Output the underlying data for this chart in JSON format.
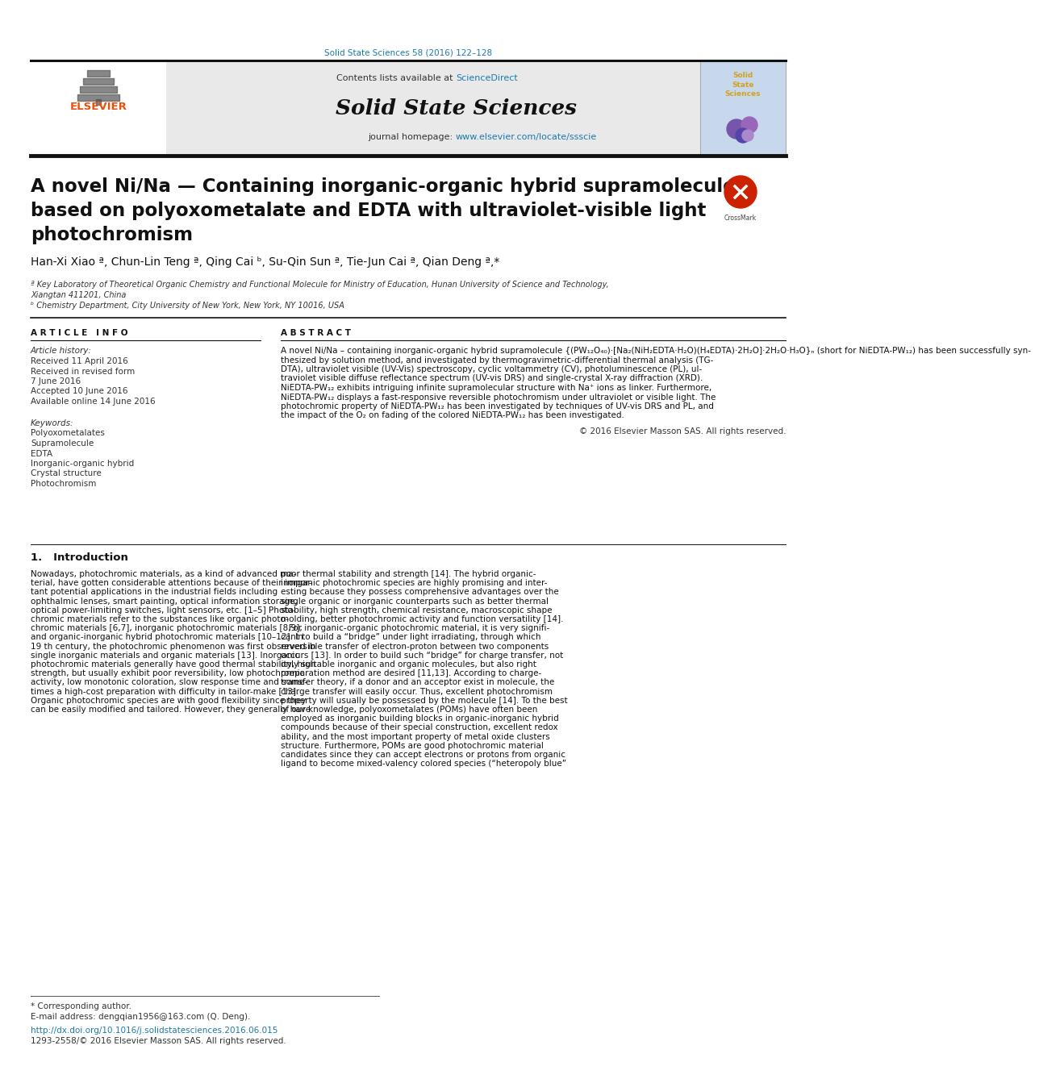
{
  "page_bg": "#ffffff",
  "journal_ref_color": "#1a7aad",
  "journal_ref": "Solid State Sciences 58 (2016) 122–128",
  "header_bg": "#e8e8e8",
  "elsevier_color": "#e8520a",
  "journal_name": "Solid State Sciences",
  "contents_text": "Contents lists available at ",
  "sciencedirect_text": "ScienceDirect",
  "sciencedirect_color": "#1a7aad",
  "homepage_text": "journal homepage: ",
  "homepage_url": "www.elsevier.com/locate/ssscie",
  "homepage_url_color": "#1a7aad",
  "title_line1": "A novel Ni/Na — Containing inorganic-organic hybrid supramolecule",
  "title_line2": "based on polyoxometalate and EDTA with ultraviolet-visible light",
  "title_line3": "photochromism",
  "authors": "Han-Xi Xiao ª, Chun-Lin Teng ª, Qing Cai ᵇ, Su-Qin Sun ª, Tie-Jun Cai ª, Qian Deng ª,*",
  "affil_a": "ª Key Laboratory of Theoretical Organic Chemistry and Functional Molecule for Ministry of Education, Hunan University of Science and Technology,",
  "affil_a2": "Xiangtan 411201, China",
  "affil_b": "ᵇ Chemistry Department, City University of New York, New York, NY 10016, USA",
  "article_info_title": "A R T I C L E   I N F O",
  "article_history_label": "Article history:",
  "received": "Received 11 April 2016",
  "revised": "Received in revised form",
  "revised2": "7 June 2016",
  "accepted": "Accepted 10 June 2016",
  "available": "Available online 14 June 2016",
  "keywords_label": "Keywords:",
  "keywords": [
    "Polyoxometalates",
    "Supramolecule",
    "EDTA",
    "Inorganic-organic hybrid",
    "Crystal structure",
    "Photochromism"
  ],
  "abstract_title": "A B S T R A C T",
  "abstract_lines": [
    "A novel Ni/Na – containing inorganic-organic hybrid supramolecule {(PW₁₂O₄₀)·[Na₂(NiH₂EDTA·H₂O)(H₄EDTA)·2H₂O]·2H₂O·H₃O}ₙ (short for NiEDTA-PW₁₂) has been successfully syn-",
    "thesized by solution method, and investigated by thermogravimetric-differential thermal analysis (TG-",
    "DTA), ultraviolet visible (UV-Vis) spectroscopy, cyclic voltammetry (CV), photoluminescence (PL), ul-",
    "traviolet visible diffuse reflectance spectrum (UV-vis DRS) and single-crystal X-ray diffraction (XRD).",
    "NiEDTA-PW₁₂ exhibits intriguing infinite supramolecular structure with Na⁺ ions as linker. Furthermore,",
    "NiEDTA-PW₁₂ displays a fast-responsive reversible photochromism under ultraviolet or visible light. The",
    "photochromic property of NiEDTA-PW₁₂ has been investigated by techniques of UV-vis DRS and PL, and",
    "the impact of the O₂ on fading of the colored NiEDTA-PW₁₂ has been investigated."
  ],
  "copyright": "© 2016 Elsevier Masson SAS. All rights reserved.",
  "intro_title": "1.   Introduction",
  "intro_col1_lines": [
    "Nowadays, photochromic materials, as a kind of advanced ma-",
    "terial, have gotten considerable attentions because of their impor-",
    "tant potential applications in the industrial fields including",
    "ophthalmic lenses, smart painting, optical information storage,",
    "optical power-limiting switches, light sensors, etc. [1–5] Photo-",
    "chromic materials refer to the substances like organic photo-",
    "chromic materials [6,7], inorganic photochromic materials [8,9],",
    "and organic-inorganic hybrid photochromic materials [10–12]. In",
    "19 th century, the photochromic phenomenon was first observed in",
    "single inorganic materials and organic materials [13]. Inorganic",
    "photochromic materials generally have good thermal stability, high",
    "strength, but usually exhibit poor reversibility, low photochromic",
    "activity, low monotonic coloration, slow response time and some-",
    "times a high-cost preparation with difficulty in tailor-make [13].",
    "Organic photochromic species are with good flexibility since they",
    "can be easily modified and tailored. However, they generally have"
  ],
  "intro_col2_lines": [
    "poor thermal stability and strength [14]. The hybrid organic-",
    "inorganic photochromic species are highly promising and inter-",
    "esting because they possess comprehensive advantages over the",
    "single organic or inorganic counterparts such as better thermal",
    "stability, high strength, chemical resistance, macroscopic shape",
    "molding, better photochromic activity and function versatility [14].",
    "   For inorganic-organic photochromic material, it is very signifi-",
    "cant to build a “bridge” under light irradiating, through which",
    "reversible transfer of electron-proton between two components",
    "occurs [13]. In order to build such “bridge” for charge transfer, not",
    "only suitable inorganic and organic molecules, but also right",
    "preparation method are desired [11,13]. According to charge-",
    "transfer theory, if a donor and an acceptor exist in molecule, the",
    "charge transfer will easily occur. Thus, excellent photochromism",
    "property will usually be possessed by the molecule [14]. To the best",
    "of our knowledge, polyoxometalates (POMs) have often been",
    "employed as inorganic building blocks in organic-inorganic hybrid",
    "compounds because of their special construction, excellent redox",
    "ability, and the most important property of metal oxide clusters",
    "structure. Furthermore, POMs are good photochromic material",
    "candidates since they can accept electrons or protons from organic",
    "ligand to become mixed-valency colored species (“heteropoly blue”"
  ],
  "footnote_star": "* Corresponding author.",
  "footnote_email": "E-mail address: dengqian1956@163.com (Q. Deng).",
  "footnote_doi": "http://dx.doi.org/10.1016/j.solidstatesciences.2016.06.015",
  "footnote_issn": "1293-2558/© 2016 Elsevier Masson SAS. All rights reserved."
}
